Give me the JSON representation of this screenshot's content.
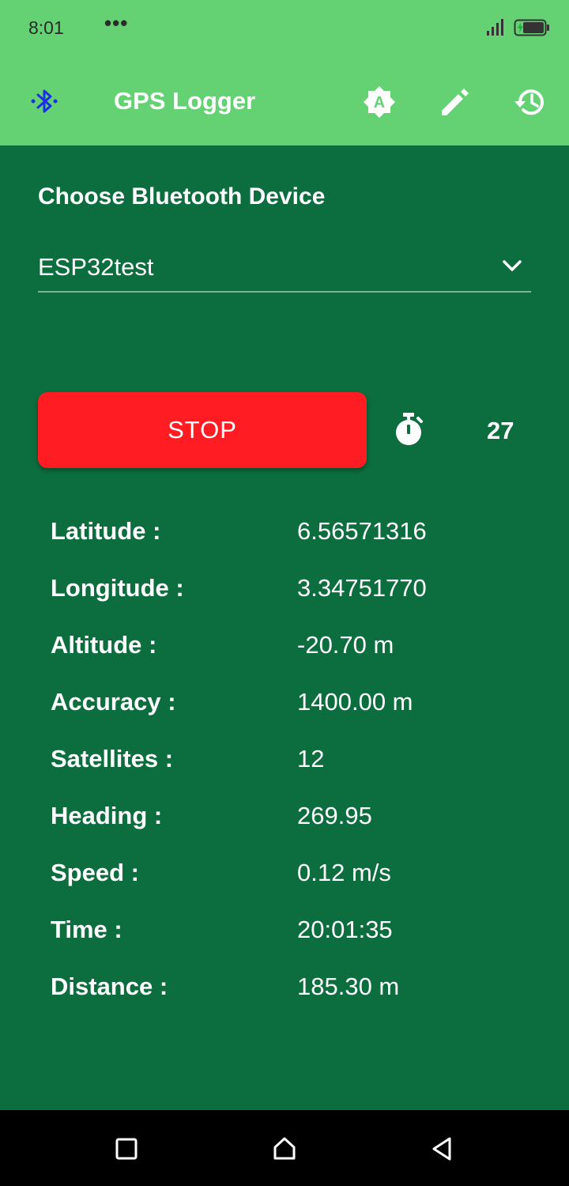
{
  "status_bar": {
    "time": "8:01",
    "dots": "•••"
  },
  "app_bar": {
    "title": "GPS Logger",
    "icons": [
      "bluetooth-icon",
      "auto-brightness-icon",
      "edit-icon",
      "history-icon"
    ],
    "bluetooth_color": "#1a2fe6"
  },
  "device": {
    "section_label": "Choose Bluetooth Device",
    "selected": "ESP32test"
  },
  "controls": {
    "stop_label": "STOP",
    "stop_color": "#ff1d23",
    "counter": "27"
  },
  "readings": [
    {
      "label": "Latitude :",
      "value": "6.56571316"
    },
    {
      "label": "Longitude :",
      "value": "3.34751770"
    },
    {
      "label": "Altitude :",
      "value": "-20.70 m"
    },
    {
      "label": "Accuracy :",
      "value": "1400.00 m"
    },
    {
      "label": "Satellites :",
      "value": "12"
    },
    {
      "label": "Heading :",
      "value": "269.95"
    },
    {
      "label": "Speed :",
      "value": "0.12 m/s"
    },
    {
      "label": "Time :",
      "value": "20:01:35"
    },
    {
      "label": "Distance :",
      "value": "185.30 m"
    }
  ],
  "colors": {
    "app_bar": "#64d173",
    "background": "#0c6e3e"
  }
}
